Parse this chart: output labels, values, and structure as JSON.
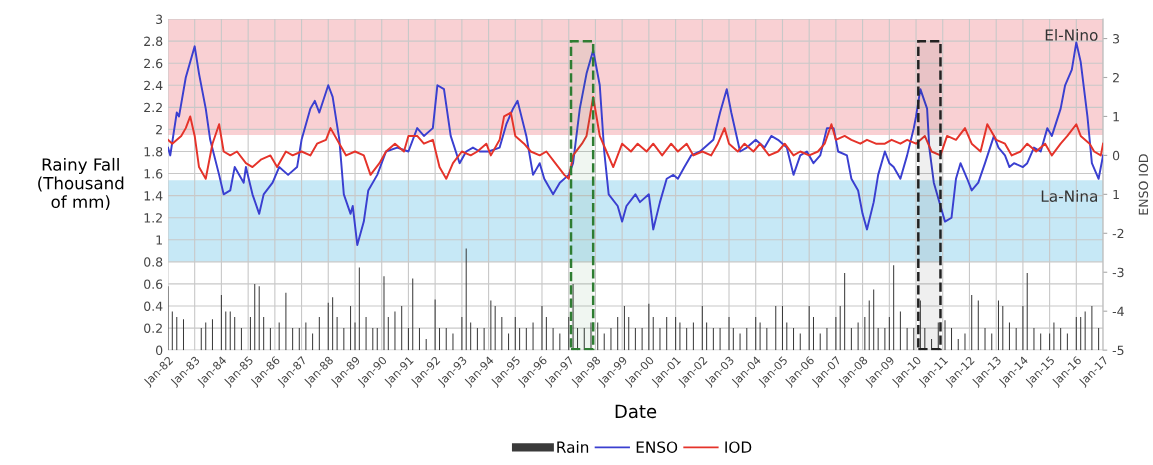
{
  "chart_data": {
    "type": "bar",
    "xlabel": "Date",
    "ylabel": "Rainy Fall\n(Thousand\nof mm)",
    "y2label": "ENSO IOD",
    "xlim": [
      "1982-01",
      "2017-01"
    ],
    "xticks": [
      {
        "value": "1982-01",
        "label": "Jan-82"
      },
      {
        "value": "1983-01",
        "label": "Jan-83"
      },
      {
        "value": "1984-01",
        "label": "Jan-84"
      },
      {
        "value": "1985-01",
        "label": "Jan-85"
      },
      {
        "value": "1986-01",
        "label": "Jan-86"
      },
      {
        "value": "1987-01",
        "label": "Jan-87"
      },
      {
        "value": "1988-01",
        "label": "Jan-88"
      },
      {
        "value": "1989-01",
        "label": "Jan-89"
      },
      {
        "value": "1990-01",
        "label": "Jan-90"
      },
      {
        "value": "1991-01",
        "label": "Jan-91"
      },
      {
        "value": "1992-01",
        "label": "Jan-92"
      },
      {
        "value": "1993-01",
        "label": "Jan-93"
      },
      {
        "value": "1994-01",
        "label": "Jan-94"
      },
      {
        "value": "1995-01",
        "label": "Jan-95"
      },
      {
        "value": "1996-01",
        "label": "Jan-96"
      },
      {
        "value": "1997-01",
        "label": "Jan-97"
      },
      {
        "value": "1998-01",
        "label": "Jan-98"
      },
      {
        "value": "1999-01",
        "label": "Jan-99"
      },
      {
        "value": "2000-01",
        "label": "Jan-00"
      },
      {
        "value": "2001-01",
        "label": "Jan-01"
      },
      {
        "value": "2002-01",
        "label": "Jan-02"
      },
      {
        "value": "2003-01",
        "label": "Jan-03"
      },
      {
        "value": "2004-01",
        "label": "Jan-04"
      },
      {
        "value": "2005-01",
        "label": "Jan-05"
      },
      {
        "value": "2006-01",
        "label": "Jan-06"
      },
      {
        "value": "2007-01",
        "label": "Jan-07"
      },
      {
        "value": "2008-01",
        "label": "Jan-08"
      },
      {
        "value": "2009-01",
        "label": "Jan-09"
      },
      {
        "value": "2010-01",
        "label": "Jan-10"
      },
      {
        "value": "2011-01",
        "label": "Jan-11"
      },
      {
        "value": "2012-01",
        "label": "Jan-12"
      },
      {
        "value": "2013-01",
        "label": "Jan-13"
      },
      {
        "value": "2014-01",
        "label": "Jan-14"
      },
      {
        "value": "2015-01",
        "label": "Jan-15"
      },
      {
        "value": "2016-01",
        "label": "Jan-16"
      },
      {
        "value": "2017-01",
        "label": "Jan-17"
      }
    ],
    "ylim": [
      0,
      3
    ],
    "yticks": [
      0,
      0.2,
      0.4,
      0.6,
      0.8,
      1,
      1.2,
      1.4,
      1.6,
      1.8,
      2,
      2.2,
      2.4,
      2.6,
      2.8,
      3
    ],
    "y2lim": [
      -5,
      3.5
    ],
    "y2ticks": [
      -5,
      -4,
      -3,
      -2,
      {
        "value": -1,
        "label": "1"
      },
      0,
      1,
      2,
      3
    ],
    "grid": true,
    "legend": "bottom",
    "bands": [
      {
        "axis": "y",
        "from": 1.95,
        "to": 3,
        "label": "El-Nino",
        "color": "#f9d0d3"
      },
      {
        "axis": "y",
        "from": 0.8,
        "to": 1.54,
        "label": "La-Nina",
        "color": "#c6e8f6"
      },
      {
        "axis": "x",
        "from": "1997-02",
        "to": "1997-12",
        "color": "#2e7d32"
      },
      {
        "axis": "x",
        "from": "2010-02",
        "to": "2010-12",
        "color": "#222222"
      }
    ],
    "series": [
      {
        "name": "Rain",
        "type": "bar",
        "color": "#3a3a3a",
        "x": [
          "1982-01",
          "1982-03",
          "1982-05",
          "1982-08",
          "1983-04",
          "1983-06",
          "1983-09",
          "1984-01",
          "1984-03",
          "1984-05",
          "1984-07",
          "1984-10",
          "1985-02",
          "1985-04",
          "1985-06",
          "1985-08",
          "1985-11",
          "1986-03",
          "1986-06",
          "1986-09",
          "1986-12",
          "1987-03",
          "1987-06",
          "1987-09",
          "1988-01",
          "1988-03",
          "1988-05",
          "1988-08",
          "1988-11",
          "1989-01",
          "1989-03",
          "1989-06",
          "1989-09",
          "1989-11",
          "1990-02",
          "1990-04",
          "1990-07",
          "1990-10",
          "1991-01",
          "1991-03",
          "1991-06",
          "1991-09",
          "1992-01",
          "1992-03",
          "1992-06",
          "1992-09",
          "1993-01",
          "1993-03",
          "1993-05",
          "1993-08",
          "1993-11",
          "1994-02",
          "1994-04",
          "1994-07",
          "1994-10",
          "1995-01",
          "1995-03",
          "1995-06",
          "1995-09",
          "1996-01",
          "1996-03",
          "1996-06",
          "1996-09",
          "1997-01",
          "1997-03",
          "1997-05",
          "1997-08",
          "1997-11",
          "1998-02",
          "1998-05",
          "1998-08",
          "1998-11",
          "1999-02",
          "1999-04",
          "1999-07",
          "1999-10",
          "2000-01",
          "2000-03",
          "2000-06",
          "2000-09",
          "2001-01",
          "2001-03",
          "2001-06",
          "2001-09",
          "2002-01",
          "2002-03",
          "2002-06",
          "2002-09",
          "2003-01",
          "2003-03",
          "2003-06",
          "2003-09",
          "2004-01",
          "2004-03",
          "2004-06",
          "2004-10",
          "2005-01",
          "2005-03",
          "2005-06",
          "2005-09",
          "2006-01",
          "2006-03",
          "2006-06",
          "2006-09",
          "2007-01",
          "2007-03",
          "2007-05",
          "2007-08",
          "2007-11",
          "2008-02",
          "2008-04",
          "2008-06",
          "2008-08",
          "2008-11",
          "2009-01",
          "2009-03",
          "2009-06",
          "2009-09",
          "2009-12",
          "2010-03",
          "2010-05",
          "2010-08",
          "2010-11",
          "2011-02",
          "2011-05",
          "2011-08",
          "2011-11",
          "2012-02",
          "2012-05",
          "2012-08",
          "2012-11",
          "2013-02",
          "2013-04",
          "2013-07",
          "2013-10",
          "2014-01",
          "2014-03",
          "2014-06",
          "2014-09",
          "2015-01",
          "2015-03",
          "2015-06",
          "2015-09",
          "2016-01",
          "2016-03",
          "2016-05",
          "2016-08",
          "2016-11"
        ],
        "values": [
          0.58,
          0.35,
          0.3,
          0.28,
          0.2,
          0.25,
          0.28,
          0.5,
          0.35,
          0.35,
          0.3,
          0.2,
          0.3,
          0.6,
          0.58,
          0.3,
          0.2,
          0.25,
          0.52,
          0.2,
          0.2,
          0.25,
          0.15,
          0.3,
          0.43,
          0.48,
          0.3,
          0.2,
          0.4,
          0.25,
          0.75,
          0.3,
          0.2,
          0.2,
          0.67,
          0.3,
          0.35,
          0.4,
          0.2,
          0.65,
          0.2,
          0.1,
          0.46,
          0.2,
          0.2,
          0.15,
          0.3,
          0.92,
          0.25,
          0.2,
          0.2,
          0.45,
          0.4,
          0.3,
          0.15,
          0.3,
          0.2,
          0.2,
          0.25,
          0.4,
          0.3,
          0.2,
          0.15,
          0.3,
          0.6,
          0.2,
          0.2,
          0.25,
          0.25,
          0.15,
          0.2,
          0.3,
          0.4,
          0.3,
          0.2,
          0.2,
          0.42,
          0.3,
          0.2,
          0.3,
          0.3,
          0.25,
          0.2,
          0.25,
          0.4,
          0.25,
          0.2,
          0.2,
          0.3,
          0.2,
          0.15,
          0.2,
          0.3,
          0.25,
          0.2,
          0.4,
          0.4,
          0.25,
          0.2,
          0.15,
          0.4,
          0.3,
          0.15,
          0.2,
          0.3,
          0.4,
          0.7,
          0.2,
          0.25,
          0.3,
          0.45,
          0.55,
          0.2,
          0.2,
          0.3,
          0.77,
          0.35,
          0.2,
          0.2,
          0.45,
          0.2,
          0.1,
          0.25,
          0.27,
          0.2,
          0.1,
          0.15,
          0.5,
          0.45,
          0.2,
          0.15,
          0.45,
          0.4,
          0.25,
          0.2,
          0.4,
          0.7,
          0.2,
          0.15,
          0.15,
          0.25,
          0.2,
          0.15,
          0.3,
          0.3,
          0.35,
          0.4,
          0.2
        ]
      },
      {
        "name": "ENSO",
        "type": "line",
        "axis": "y2",
        "color": "#3a3fd0",
        "x": [
          "1982-01",
          "1982-02",
          "1982-05",
          "1982-06",
          "1982-09",
          "1983-01",
          "1983-03",
          "1983-06",
          "1983-08",
          "1983-12",
          "1984-02",
          "1984-05",
          "1984-07",
          "1984-11",
          "1984-12",
          "1985-03",
          "1985-06",
          "1985-08",
          "1985-12",
          "1986-03",
          "1986-07",
          "1986-11",
          "1987-01",
          "1987-05",
          "1987-07",
          "1987-09",
          "1988-01",
          "1988-03",
          "1988-06",
          "1988-08",
          "1988-11",
          "1988-12",
          "1989-02",
          "1989-05",
          "1989-07",
          "1989-11",
          "1990-03",
          "1990-08",
          "1991-01",
          "1991-05",
          "1991-08",
          "1991-12",
          "1992-02",
          "1992-05",
          "1992-08",
          "1992-12",
          "1993-03",
          "1993-06",
          "1993-09",
          "1994-01",
          "1994-06",
          "1994-09",
          "1994-12",
          "1995-02",
          "1995-06",
          "1995-09",
          "1995-12",
          "1996-02",
          "1996-06",
          "1996-09",
          "1997-01",
          "1997-03",
          "1997-06",
          "1997-09",
          "1997-12",
          "1998-03",
          "1998-05",
          "1998-07",
          "1998-11",
          "1999-01",
          "1999-03",
          "1999-07",
          "1999-09",
          "2000-01",
          "2000-03",
          "2000-06",
          "2000-09",
          "2000-12",
          "2001-02",
          "2001-05",
          "2001-08",
          "2001-12",
          "2002-02",
          "2002-06",
          "2002-09",
          "2002-12",
          "2003-02",
          "2003-06",
          "2003-09",
          "2004-01",
          "2004-05",
          "2004-08",
          "2004-11",
          "2005-03",
          "2005-06",
          "2005-09",
          "2005-12",
          "2006-03",
          "2006-06",
          "2006-09",
          "2006-12",
          "2007-02",
          "2007-06",
          "2007-08",
          "2007-11",
          "2008-01",
          "2008-03",
          "2008-06",
          "2008-08",
          "2008-11",
          "2009-01",
          "2009-03",
          "2009-06",
          "2009-09",
          "2009-12",
          "2010-01",
          "2010-03",
          "2010-06",
          "2010-07",
          "2010-09",
          "2010-12",
          "2011-02",
          "2011-05",
          "2011-07",
          "2011-09",
          "2011-12",
          "2012-02",
          "2012-05",
          "2012-08",
          "2012-12",
          "2013-02",
          "2013-05",
          "2013-07",
          "2013-09",
          "2014-01",
          "2014-03",
          "2014-06",
          "2014-09",
          "2014-12",
          "2015-02",
          "2015-06",
          "2015-08",
          "2015-11",
          "2016-01",
          "2016-03",
          "2016-06",
          "2016-08",
          "2016-11",
          "2017-01"
        ],
        "values": [
          0.2,
          0.0,
          1.1,
          1.0,
          2.0,
          2.8,
          2.1,
          1.2,
          0.4,
          -0.5,
          -1.0,
          -0.9,
          -0.3,
          -0.7,
          -0.3,
          -1.0,
          -1.5,
          -1.0,
          -0.7,
          -0.3,
          -0.5,
          -0.3,
          0.4,
          1.2,
          1.4,
          1.1,
          1.8,
          1.5,
          0.4,
          -1.0,
          -1.5,
          -1.3,
          -2.3,
          -1.7,
          -0.9,
          -0.5,
          0.1,
          0.2,
          0.1,
          0.7,
          0.5,
          0.7,
          1.8,
          1.7,
          0.5,
          -0.2,
          0.1,
          0.2,
          0.1,
          0.1,
          0.2,
          0.8,
          1.2,
          1.4,
          0.5,
          -0.5,
          -0.2,
          -0.6,
          -1.0,
          -0.7,
          -0.5,
          -0.2,
          1.2,
          2.1,
          2.7,
          1.8,
          0.1,
          -1.0,
          -1.3,
          -1.7,
          -1.3,
          -1.0,
          -1.2,
          -1.0,
          -1.9,
          -1.2,
          -0.6,
          -0.5,
          -0.6,
          -0.3,
          0.0,
          0.1,
          0.2,
          0.4,
          1.1,
          1.7,
          1.1,
          0.1,
          0.2,
          0.4,
          0.2,
          0.5,
          0.4,
          0.2,
          -0.5,
          0.0,
          0.1,
          -0.2,
          0.0,
          0.7,
          0.7,
          0.1,
          0.0,
          -0.6,
          -0.9,
          -1.5,
          -1.9,
          -1.2,
          -0.5,
          0.1,
          -0.2,
          -0.3,
          -0.6,
          0.0,
          0.7,
          1.0,
          1.7,
          1.2,
          0.2,
          -0.7,
          -1.3,
          -1.7,
          -1.6,
          -0.6,
          -0.2,
          -0.6,
          -0.9,
          -0.7,
          -0.2,
          0.5,
          0.2,
          -0.0,
          -0.3,
          -0.2,
          -0.3,
          -0.2,
          0.2,
          0.1,
          0.7,
          0.5,
          1.2,
          1.8,
          2.2,
          2.9,
          2.4,
          1.0,
          -0.2,
          -0.6,
          -0.0
        ]
      },
      {
        "name": "IOD",
        "type": "line",
        "axis": "y2",
        "color": "#e5332a",
        "x": [
          "1982-01",
          "1982-03",
          "1982-07",
          "1982-09",
          "1982-11",
          "1983-01",
          "1983-03",
          "1983-06",
          "1983-09",
          "1983-12",
          "1984-02",
          "1984-05",
          "1984-08",
          "1984-12",
          "1985-03",
          "1985-07",
          "1985-11",
          "1986-02",
          "1986-06",
          "1986-09",
          "1987-01",
          "1987-05",
          "1987-08",
          "1987-12",
          "1988-02",
          "1988-06",
          "1988-09",
          "1989-01",
          "1989-05",
          "1989-08",
          "1989-12",
          "1990-03",
          "1990-07",
          "1990-11",
          "1991-01",
          "1991-05",
          "1991-08",
          "1991-12",
          "1992-03",
          "1992-06",
          "1992-09",
          "1993-01",
          "1993-05",
          "1993-08",
          "1993-12",
          "1994-02",
          "1994-06",
          "1994-08",
          "1994-11",
          "1995-01",
          "1995-05",
          "1995-08",
          "1995-12",
          "1996-03",
          "1996-07",
          "1996-11",
          "1997-01",
          "1997-03",
          "1997-07",
          "1997-09",
          "1997-12",
          "1998-03",
          "1998-06",
          "1998-09",
          "1999-01",
          "1999-05",
          "1999-08",
          "1999-12",
          "2000-03",
          "2000-07",
          "2000-11",
          "2001-02",
          "2001-06",
          "2001-09",
          "2002-01",
          "2002-05",
          "2002-08",
          "2002-11",
          "2003-01",
          "2003-05",
          "2003-08",
          "2003-12",
          "2004-03",
          "2004-07",
          "2004-11",
          "2005-02",
          "2005-06",
          "2005-09",
          "2006-01",
          "2006-05",
          "2006-08",
          "2006-11",
          "2007-01",
          "2007-05",
          "2007-08",
          "2007-12",
          "2008-03",
          "2008-07",
          "2008-11",
          "2009-02",
          "2009-06",
          "2009-09",
          "2010-01",
          "2010-05",
          "2010-08",
          "2010-12",
          "2011-03",
          "2011-07",
          "2011-11",
          "2012-02",
          "2012-06",
          "2012-09",
          "2013-01",
          "2013-05",
          "2013-08",
          "2013-12",
          "2014-03",
          "2014-07",
          "2014-11",
          "2015-02",
          "2015-06",
          "2015-09",
          "2016-01",
          "2016-03",
          "2016-07",
          "2016-09",
          "2016-12",
          "2017-01"
        ],
        "values": [
          0.4,
          0.3,
          0.5,
          0.7,
          1.0,
          0.5,
          -0.3,
          -0.6,
          0.3,
          0.8,
          0.1,
          0.0,
          0.1,
          -0.2,
          -0.3,
          -0.1,
          0.0,
          -0.3,
          0.1,
          0.0,
          0.1,
          0.0,
          0.3,
          0.4,
          0.7,
          0.3,
          0.0,
          0.1,
          0.0,
          -0.5,
          -0.2,
          0.1,
          0.3,
          0.1,
          0.5,
          0.5,
          0.3,
          0.4,
          -0.3,
          -0.6,
          -0.2,
          0.1,
          0.0,
          0.1,
          0.3,
          0.0,
          0.4,
          1.0,
          1.1,
          0.5,
          0.3,
          0.1,
          0.0,
          0.1,
          -0.2,
          -0.5,
          -0.6,
          0.0,
          0.3,
          0.5,
          1.5,
          0.5,
          0.1,
          -0.3,
          0.3,
          0.1,
          0.3,
          0.1,
          0.3,
          0.0,
          0.3,
          0.1,
          0.3,
          0.0,
          0.1,
          0.0,
          0.3,
          0.7,
          0.3,
          0.1,
          0.3,
          0.1,
          0.3,
          0.0,
          0.1,
          0.3,
          0.0,
          0.1,
          0.0,
          0.1,
          0.3,
          0.8,
          0.4,
          0.5,
          0.4,
          0.3,
          0.4,
          0.3,
          0.3,
          0.4,
          0.3,
          0.4,
          0.3,
          0.5,
          0.1,
          0.0,
          0.5,
          0.4,
          0.7,
          0.3,
          0.1,
          0.8,
          0.4,
          0.3,
          0.0,
          0.1,
          0.3,
          0.1,
          0.3,
          0.0,
          0.3,
          0.5,
          0.8,
          0.5,
          0.3,
          0.1,
          0.0,
          0.3
        ]
      }
    ]
  }
}
